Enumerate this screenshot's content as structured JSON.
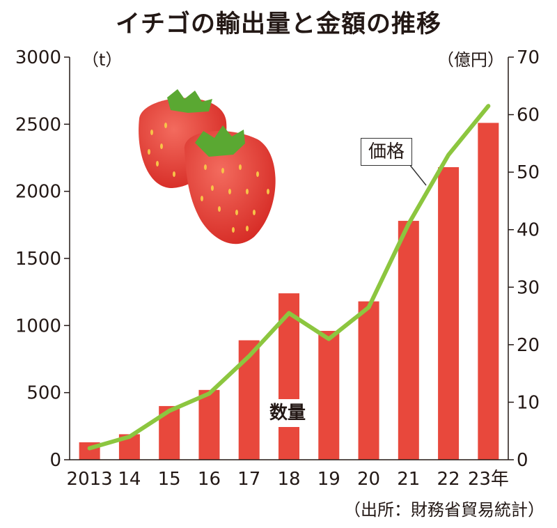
{
  "title": "イチゴの輸出量と金額の推移",
  "left_unit": "（t）",
  "right_unit": "（億円）",
  "source": "（出所：財務省貿易統計）",
  "colors": {
    "bar": "#e8483c",
    "line": "#8cc63f",
    "axis": "#231815"
  },
  "chart_data": {
    "type": "bar",
    "title": "イチゴの輸出量と金額の推移",
    "categories": [
      "2013",
      "14",
      "15",
      "16",
      "17",
      "18",
      "19",
      "20",
      "21",
      "22",
      "23年"
    ],
    "series": [
      {
        "name": "数量",
        "type": "bar",
        "axis": "left",
        "unit": "t",
        "values": [
          130,
          190,
          400,
          520,
          890,
          1240,
          960,
          1180,
          1780,
          2180,
          2510
        ]
      },
      {
        "name": "価格",
        "type": "line",
        "axis": "right",
        "unit": "億円",
        "values": [
          2,
          4,
          8.5,
          11.5,
          18,
          25.5,
          21,
          26.5,
          41,
          53,
          61.5
        ]
      }
    ],
    "y_left": {
      "label": "（t）",
      "min": 0,
      "max": 3000,
      "ticks": [
        "0",
        "500",
        "1000",
        "1500",
        "2000",
        "2500",
        "3000"
      ]
    },
    "y_right": {
      "label": "（億円）",
      "min": 0,
      "max": 70,
      "ticks": [
        "0",
        "10",
        "20",
        "30",
        "40",
        "50",
        "60",
        "70"
      ]
    },
    "grid": false,
    "annotations": [
      "価格",
      "数量"
    ]
  }
}
